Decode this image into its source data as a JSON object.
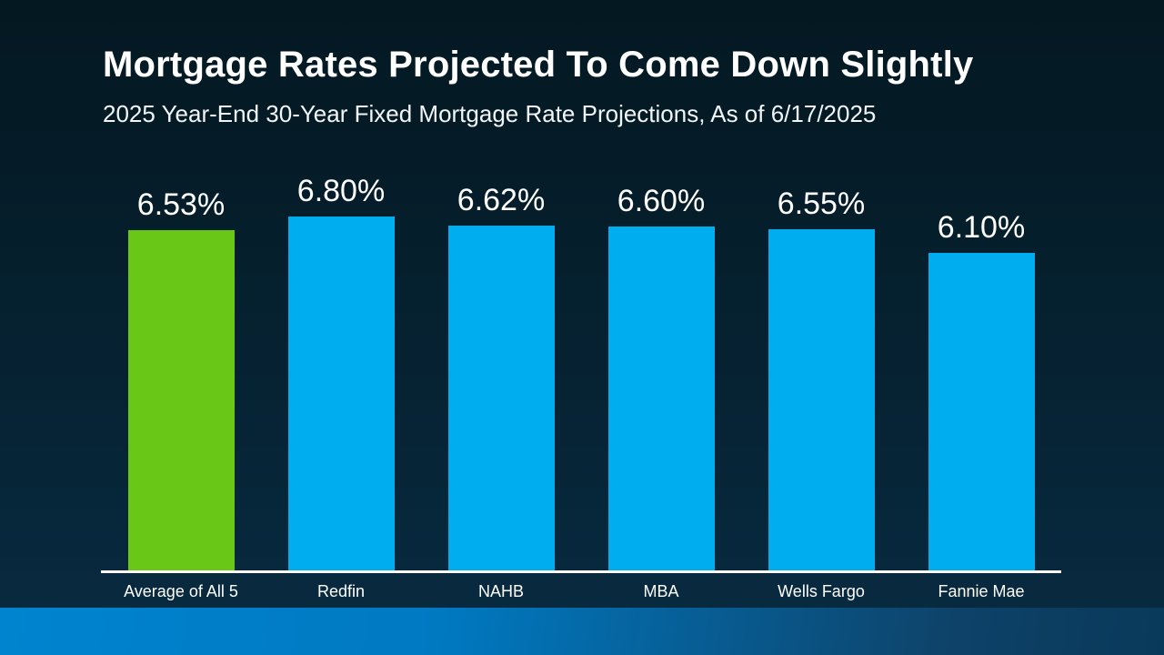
{
  "slide": {
    "title": "Mortgage Rates Projected To Come Down Slightly",
    "subtitle": "2025 Year-End 30-Year Fixed Mortgage Rate Projections, As of 6/17/2025"
  },
  "chart_data": {
    "type": "bar",
    "title": "Mortgage Rates Projected To Come Down Slightly",
    "subtitle": "2025 Year-End 30-Year Fixed Mortgage Rate Projections, As of 6/17/2025",
    "categories": [
      "Average of All 5",
      "Redfin",
      "NAHB",
      "MBA",
      "Wells Fargo",
      "Fannie Mae"
    ],
    "values": [
      6.53,
      6.8,
      6.62,
      6.6,
      6.55,
      6.1
    ],
    "value_labels": [
      "6.53%",
      "6.80%",
      "6.62%",
      "6.60%",
      "6.55%",
      "6.10%"
    ],
    "unit": "%",
    "ylim": [
      0,
      6.8
    ],
    "bar_colors": [
      "#68c717",
      "#00aeef",
      "#00aeef",
      "#00aeef",
      "#00aeef",
      "#00aeef"
    ],
    "highlight_category": "Average of All 5",
    "legend": "none",
    "grid": false,
    "y_axis_visible": false,
    "x_baseline_visible": true,
    "value_labels_position": "above-bars"
  },
  "colors": {
    "background_top": "#041821",
    "background_bottom": "#082a40",
    "bar_blue": "#00aeef",
    "bar_green_highlight": "#68c717",
    "text": "#ffffff",
    "axis_line": "#ffffff",
    "footer_gradient_left": "#0084cf",
    "footer_gradient_right": "#09395a"
  }
}
